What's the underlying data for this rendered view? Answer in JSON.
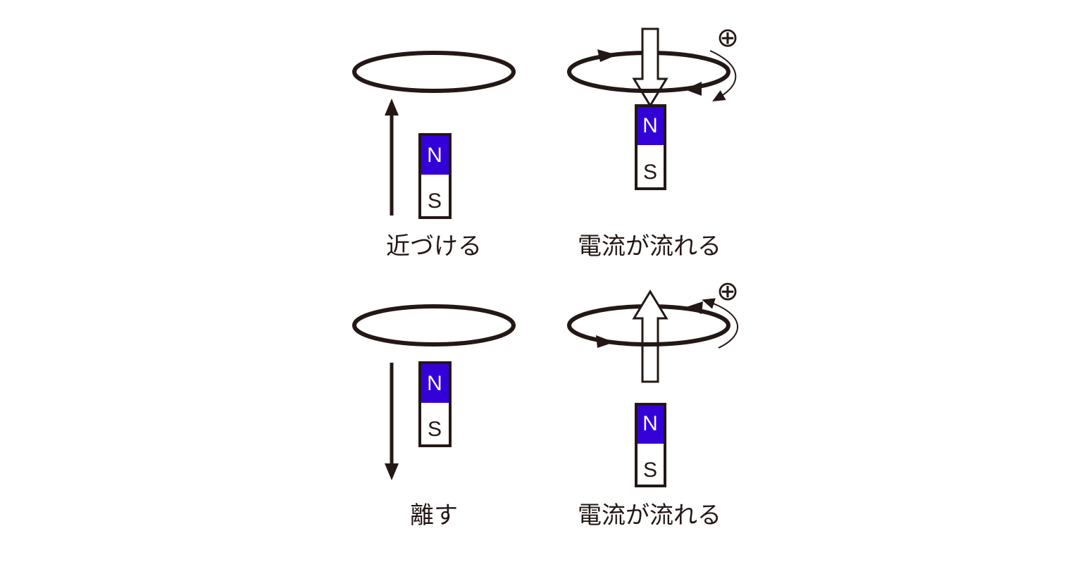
{
  "colors": {
    "ink": "#231815",
    "north_pole": "#3400d8",
    "south_pole": "#ffffff"
  },
  "magnet": {
    "north_label": "N",
    "south_label": "S"
  },
  "plus_symbol": "⊕",
  "captions": {
    "approach": "近づける",
    "current_flows_top": "電流が流れる",
    "separate": "離す",
    "current_flows_bottom": "電流が流れる"
  },
  "panels": [
    {
      "id": "approach",
      "motion": "up",
      "caption_key": "approach"
    },
    {
      "id": "current-top",
      "field_arrow": "down",
      "current": "clockwise-from-front",
      "caption_key": "current_flows_top"
    },
    {
      "id": "separate",
      "motion": "down",
      "caption_key": "separate"
    },
    {
      "id": "current-bottom",
      "field_arrow": "up",
      "current": "counterclockwise-from-front",
      "caption_key": "current_flows_bottom"
    }
  ]
}
